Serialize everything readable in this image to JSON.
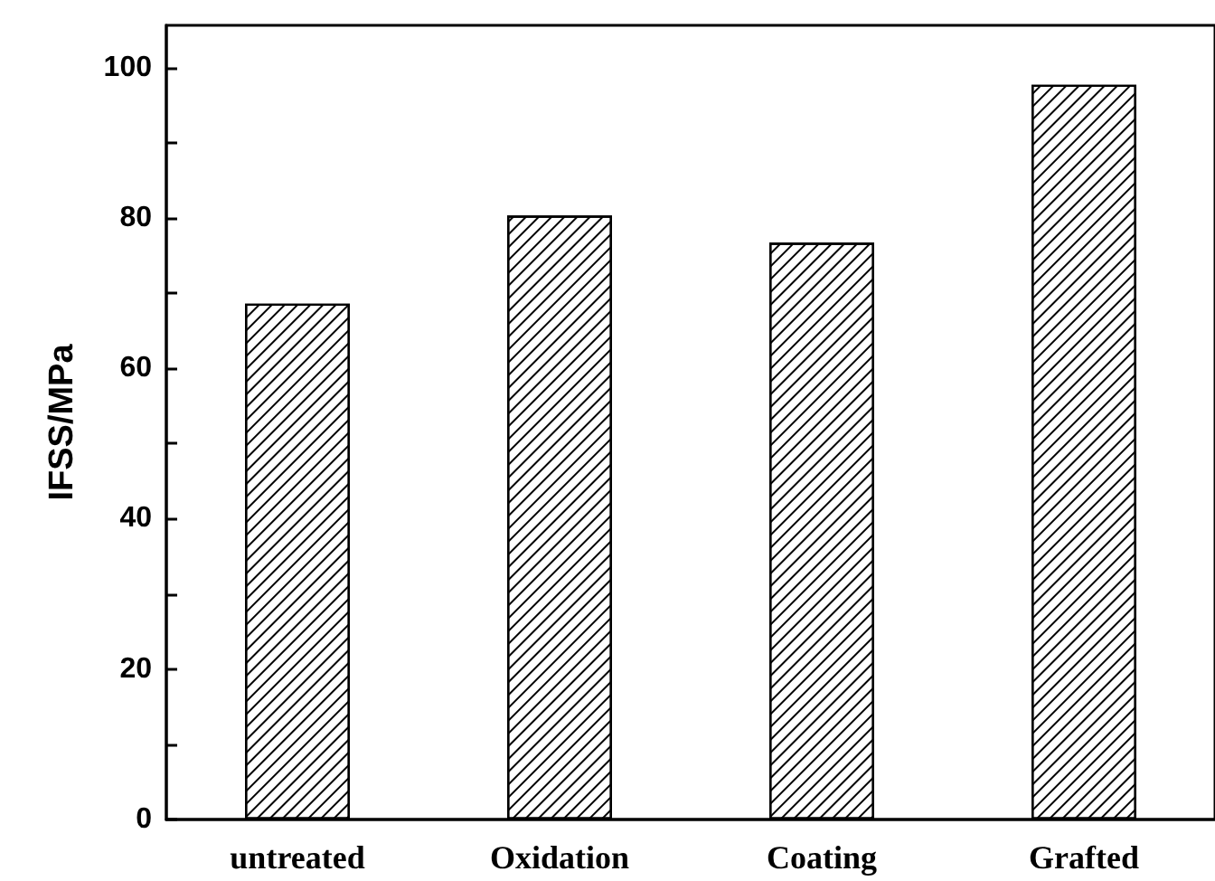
{
  "chart_data": {
    "type": "bar",
    "ylabel": "IFSS/MPa",
    "categories": [
      "untreated",
      "Oxidation",
      "Coating",
      "Grafted"
    ],
    "values": [
      68.6,
      80.3,
      76.7,
      97.7
    ],
    "color": "#ffffff",
    "ylim": [
      0,
      105.6
    ],
    "yticks": [
      0,
      {
        "value": 10,
        "label": null
      },
      20,
      {
        "value": 30,
        "label": null
      },
      40,
      {
        "value": 50,
        "label": null
      },
      60,
      {
        "value": 70,
        "label": null
      },
      80,
      {
        "value": 90,
        "label": null
      },
      100
    ],
    "grid": false
  }
}
